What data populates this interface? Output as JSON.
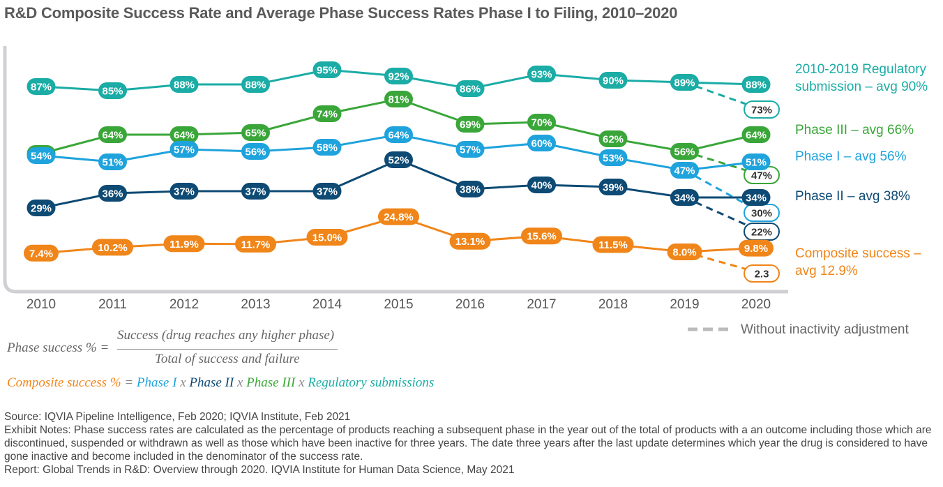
{
  "title": "R&D Composite Success Rate and Average Phase Success Rates Phase I to Filing, 2010–2020",
  "chart_data": {
    "type": "line",
    "x": [
      "2010",
      "2011",
      "2012",
      "2013",
      "2014",
      "2015",
      "2016",
      "2017",
      "2018",
      "2019",
      "2020"
    ],
    "ylim": [
      0,
      100
    ],
    "grid": false,
    "series": [
      {
        "key": "reg",
        "name": "2010-2019 Regulatory submission – avg 90%",
        "legend": [
          "2010-2019 Regulatory",
          "submission – avg 90%"
        ],
        "color": "#1aaca5",
        "values": [
          87,
          85,
          88,
          88,
          95,
          92,
          86,
          93,
          90,
          89,
          88
        ],
        "labels": [
          "87%",
          "85%",
          "88%",
          "88%",
          "95%",
          "92%",
          "86%",
          "93%",
          "90%",
          "89%",
          "88%"
        ],
        "dashed_2020": 73,
        "dashed_label": "73%"
      },
      {
        "key": "p3",
        "name": "Phase III – avg 66%",
        "legend": [
          "Phase III – avg 66%"
        ],
        "color": "#3aa639",
        "values": [
          55,
          64,
          64,
          65,
          74,
          81,
          69,
          70,
          62,
          56,
          64
        ],
        "labels": [
          "55%",
          "64%",
          "64%",
          "65%",
          "74%",
          "81%",
          "69%",
          "70%",
          "62%",
          "56%",
          "64%"
        ],
        "dashed_2020": 47,
        "dashed_label": "47%"
      },
      {
        "key": "p1",
        "name": "Phase I – avg 56%",
        "legend": [
          "Phase I – avg 56%"
        ],
        "color": "#1fa3dc",
        "values": [
          54,
          51,
          57,
          56,
          58,
          64,
          57,
          60,
          53,
          47,
          51
        ],
        "labels": [
          "54%",
          "51%",
          "57%",
          "56%",
          "58%",
          "64%",
          "57%",
          "60%",
          "53%",
          "47%",
          "51%"
        ],
        "dashed_2020": 30,
        "dashed_label": "30%"
      },
      {
        "key": "p2",
        "name": "Phase II – avg 38%",
        "legend": [
          "Phase II – avg 38%"
        ],
        "color": "#0d4a74",
        "values": [
          29,
          36,
          37,
          37,
          37,
          52,
          38,
          40,
          39,
          34,
          34
        ],
        "labels": [
          "29%",
          "36%",
          "37%",
          "37%",
          "37%",
          "52%",
          "38%",
          "40%",
          "39%",
          "34%",
          "34%"
        ],
        "dashed_2020": 22,
        "dashed_label": "22%"
      },
      {
        "key": "comp",
        "name": "Composite success – avg 12.9%",
        "legend": [
          "Composite success –",
          "avg 12.9%"
        ],
        "color": "#f08519",
        "values": [
          7.4,
          10.2,
          11.9,
          11.7,
          15.0,
          24.8,
          13.1,
          15.6,
          11.5,
          8.0,
          9.8
        ],
        "labels": [
          "7.4%",
          "10.2%",
          "11.9%",
          "11.7%",
          "15.0%",
          "24.8%",
          "13.1%",
          "15.6%",
          "11.5%",
          "8.0%",
          "9.8%"
        ],
        "dashed_2020": 2.3,
        "dashed_label": "2.3"
      }
    ],
    "dashed_legend": "Without inactivity adjustment",
    "dashed_legend_color": "#bbbbbb"
  },
  "formula": {
    "lhs": "Phase success % =",
    "numerator": "Success (drug reaches any higher phase)",
    "denominator": "Total of success and failure"
  },
  "composite_formula": {
    "parts": [
      {
        "text": "Composite success %",
        "color": "#f08519"
      },
      {
        "text": " = ",
        "color": "#888888"
      },
      {
        "text": "Phase I",
        "color": "#1fa3dc"
      },
      {
        "text": " x ",
        "color": "#888888"
      },
      {
        "text": "Phase II",
        "color": "#0d4a74"
      },
      {
        "text": " x ",
        "color": "#888888"
      },
      {
        "text": "Phase III",
        "color": "#3aa639"
      },
      {
        "text": " x ",
        "color": "#888888"
      },
      {
        "text": "Regulatory submissions",
        "color": "#1aaca5"
      }
    ]
  },
  "notes": {
    "source": "Source: IQVIA Pipeline Intelligence, Feb 2020; IQVIA Institute, Feb 2021",
    "exhibit": "Exhibit Notes: Phase success rates are calculated as the percentage of products reaching a subsequent phase in the year out of the total of products with a an outcome including those which are discontinued, suspended or withdrawn as well as those which have been inactive for three years. The date three years after the last update determines which year the drug is considered to have gone inactive and become included in the denominator of the success rate.",
    "report": "Report: Global Trends in R&D: Overview through 2020. IQVIA Institute for Human Data Science, May 2021"
  }
}
